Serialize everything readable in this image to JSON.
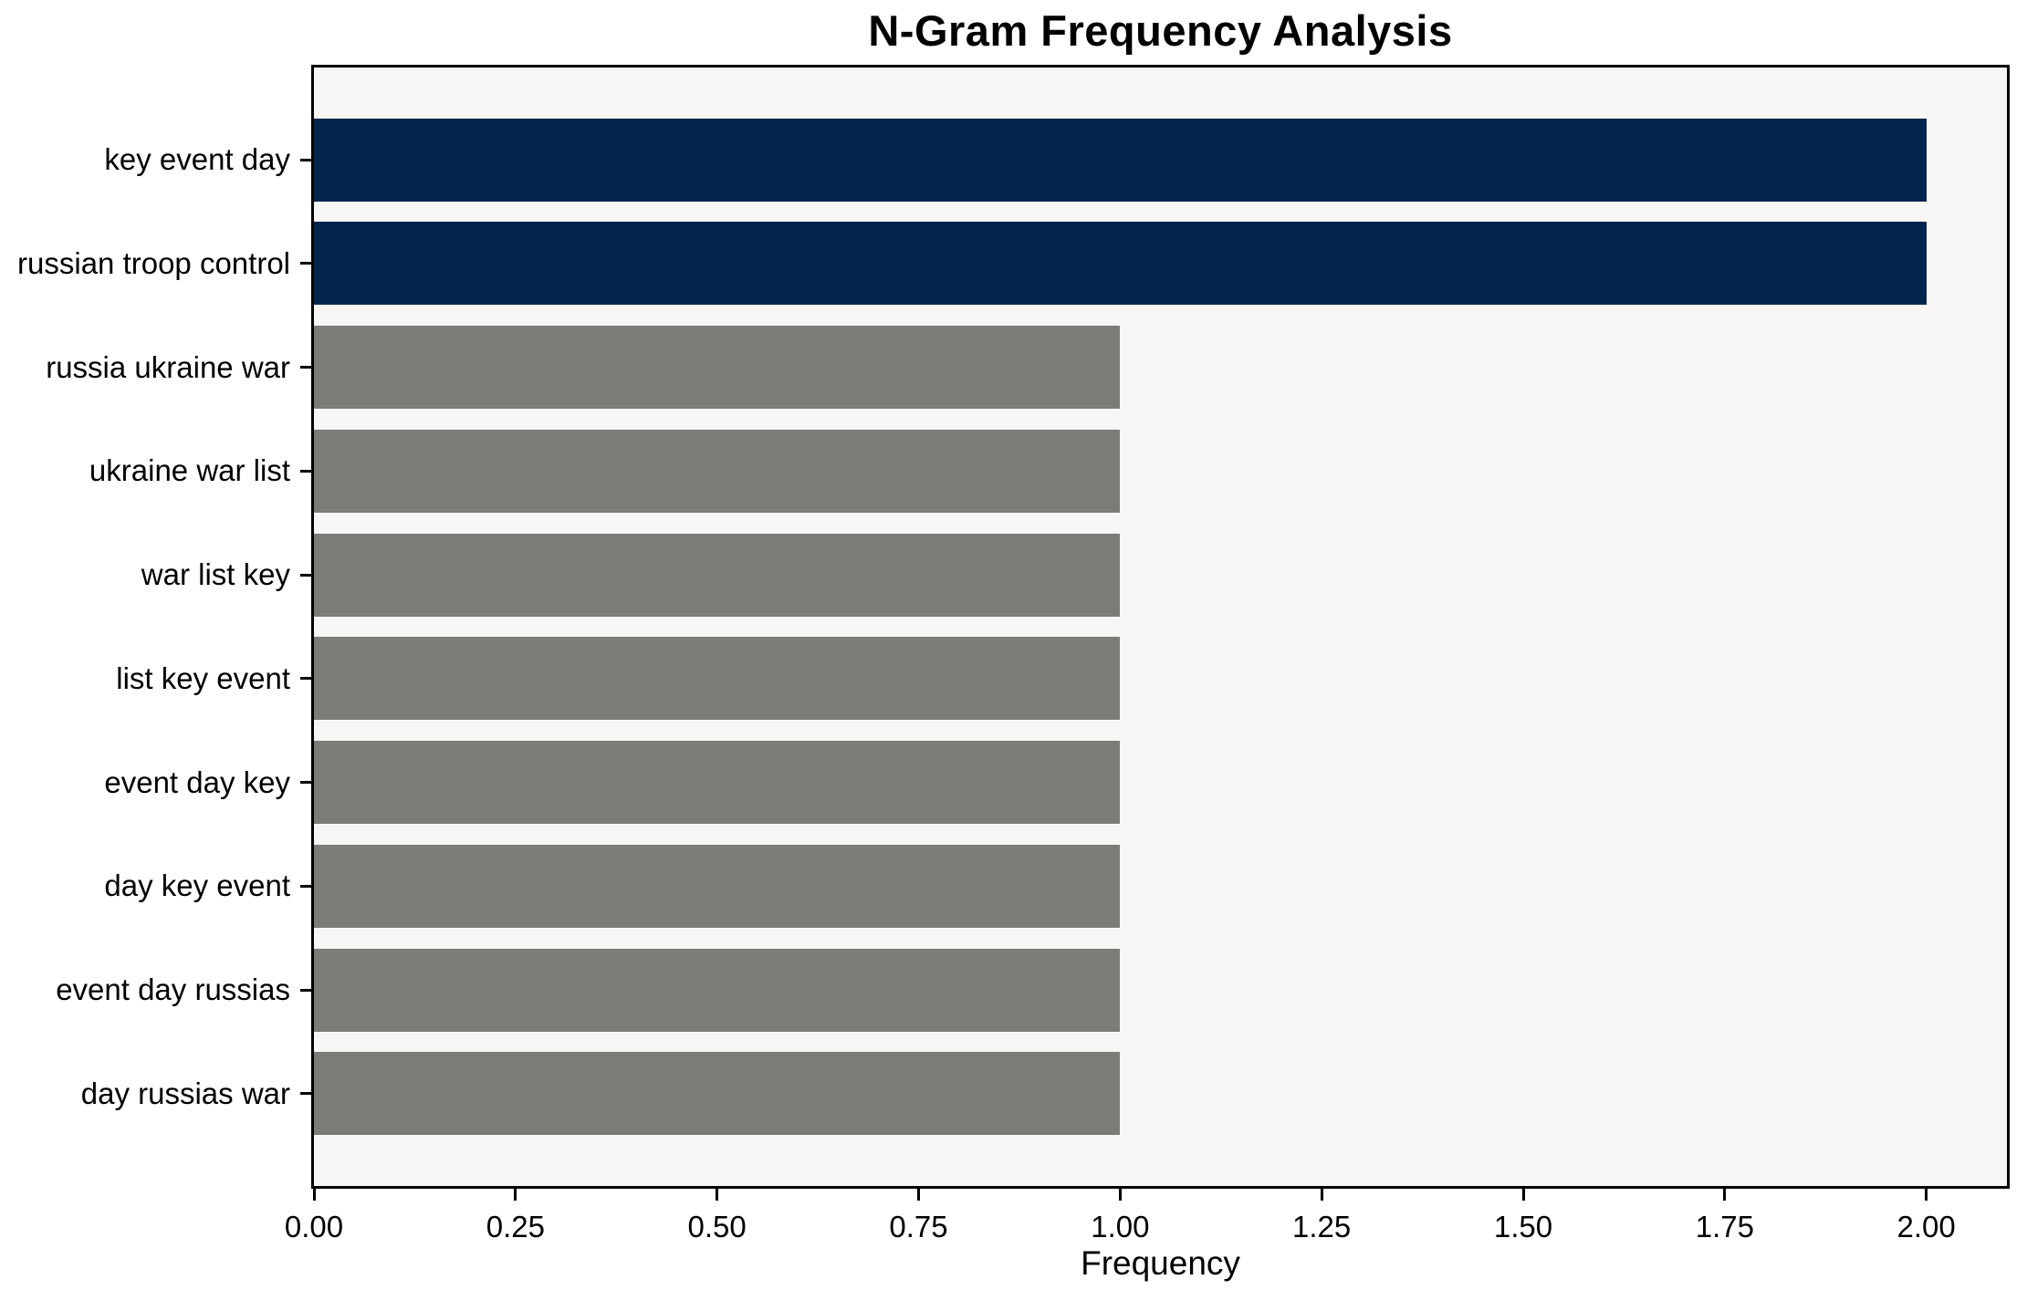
{
  "chart_data": {
    "type": "bar",
    "orientation": "horizontal",
    "title": "N-Gram Frequency Analysis",
    "xlabel": "Frequency",
    "ylabel": "",
    "categories": [
      "key event day",
      "russian troop control",
      "russia ukraine war",
      "ukraine war list",
      "war list key",
      "list key event",
      "event day key",
      "day key event",
      "event day russias",
      "day russias war"
    ],
    "values": [
      2,
      2,
      1,
      1,
      1,
      1,
      1,
      1,
      1,
      1
    ],
    "bar_colors": [
      "#03254d",
      "#03254d",
      "#7c7b77",
      "#7c7b77",
      "#7c7b77",
      "#7c7b77",
      "#7c7b77",
      "#7c7b77",
      "#7c7b77",
      "#7c7b77"
    ],
    "xlim": [
      0,
      2.1
    ],
    "x_ticks": [
      {
        "value": 0.0,
        "label": "0.00"
      },
      {
        "value": 0.25,
        "label": "0.25"
      },
      {
        "value": 0.5,
        "label": "0.50"
      },
      {
        "value": 0.75,
        "label": "0.75"
      },
      {
        "value": 1.0,
        "label": "1.00"
      },
      {
        "value": 1.25,
        "label": "1.25"
      },
      {
        "value": 1.5,
        "label": "1.50"
      },
      {
        "value": 1.75,
        "label": "1.75"
      },
      {
        "value": 2.0,
        "label": "2.00"
      }
    ],
    "grid": false,
    "legend": null,
    "colors": {
      "highlight_bar": "#03254d",
      "default_bar": "#7c7b77",
      "plot_background": "#f7f6f5",
      "figure_background": "#ffffff",
      "spine": "#000000",
      "text": "#000000"
    }
  }
}
